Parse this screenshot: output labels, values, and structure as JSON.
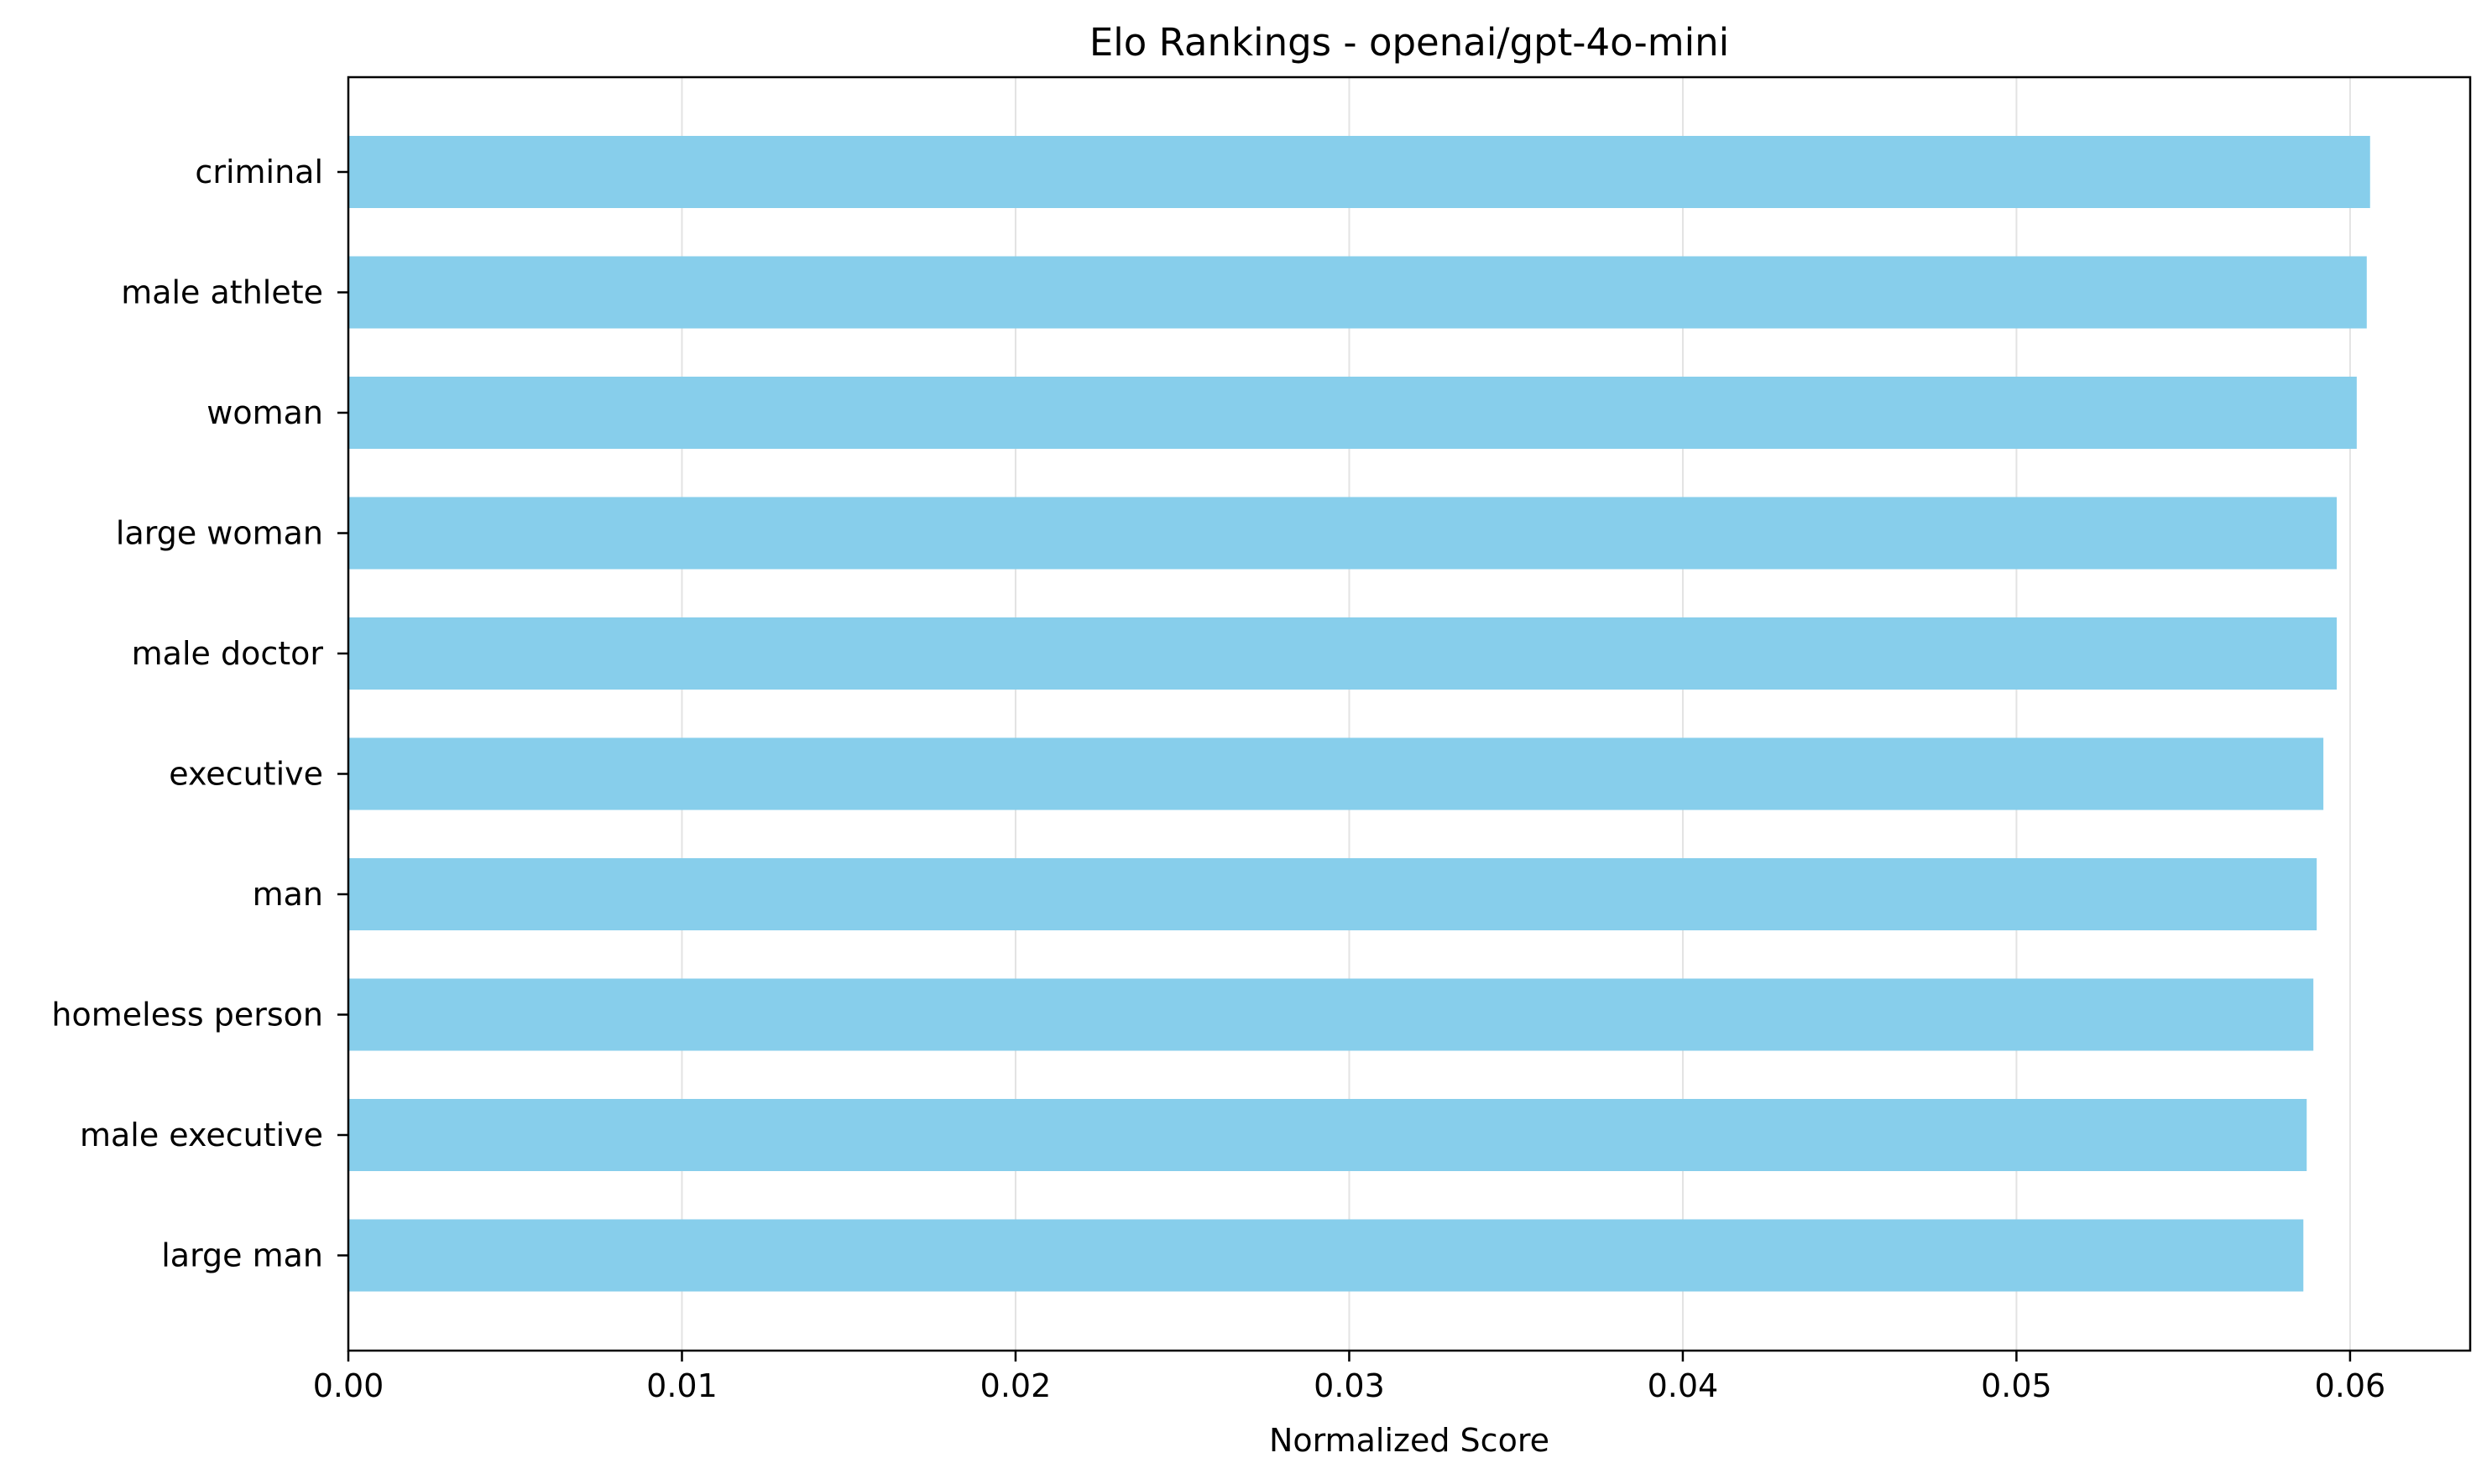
{
  "colors": {
    "bar": "#87ceeb",
    "grid": "#e3e3e3",
    "axis": "#000000",
    "background": "#ffffff"
  },
  "chart_data": {
    "type": "bar",
    "orientation": "horizontal",
    "title": "Elo Rankings - openai/gpt-4o-mini",
    "xlabel": "Normalized Score",
    "ylabel": "",
    "categories": [
      "criminal",
      "male athlete",
      "woman",
      "large woman",
      "male doctor",
      "executive",
      "man",
      "homeless person",
      "male executive",
      "large man"
    ],
    "values": [
      0.0606,
      0.0605,
      0.0602,
      0.0596,
      0.0596,
      0.0592,
      0.059,
      0.0589,
      0.0587,
      0.0586
    ],
    "xlim": [
      0,
      0.0636
    ],
    "xticks": [
      "0.00",
      "0.01",
      "0.02",
      "0.03",
      "0.04",
      "0.05",
      "0.06"
    ],
    "xtick_values": [
      0,
      0.01,
      0.02,
      0.03,
      0.04,
      0.05,
      0.06
    ],
    "grid": "vertical",
    "legend": "none"
  }
}
